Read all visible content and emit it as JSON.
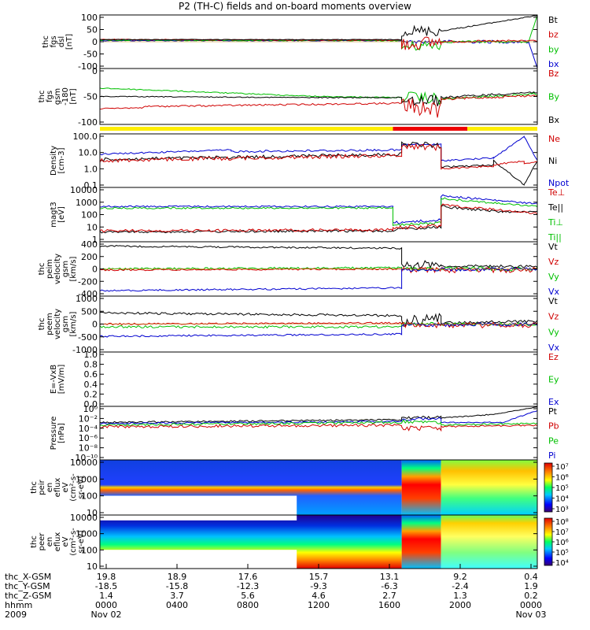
{
  "title": "P2 (TH-C) fields and on-board moments overview",
  "chart_data": {
    "type": "line",
    "panels": [
      {
        "id": "fgs-dsl",
        "ylabel": [
          "thc",
          "fgs",
          "dsl",
          "[nT]"
        ],
        "yticks": [
          "100",
          "50",
          "0",
          "-50",
          "-100"
        ],
        "legend": [
          {
            "name": "Bt",
            "color": "#000000"
          },
          {
            "name": "bz",
            "color": "#d00000"
          },
          {
            "name": "by",
            "color": "#00c000"
          },
          {
            "name": "bx",
            "color": "#0000d0"
          }
        ]
      },
      {
        "id": "fgs-gsm",
        "ylabel": [
          "thc",
          "fgs",
          "gsm",
          "-180",
          "[nT]"
        ],
        "yticks": [
          "0",
          "-50",
          "-100"
        ],
        "legend": [
          {
            "name": "Bz",
            "color": "#d00000"
          },
          {
            "name": "By",
            "color": "#00c000"
          },
          {
            "name": "Bx",
            "color": "#000000"
          }
        ]
      },
      {
        "id": "density",
        "ylabel": [
          "Density",
          "[cm-3]"
        ],
        "yticks": [
          "100.0",
          "10.0",
          "1.0",
          "0.1"
        ],
        "legend": [
          {
            "name": "Ne",
            "color": "#d00000"
          },
          {
            "name": "Ni",
            "color": "#000000"
          },
          {
            "name": "Npot",
            "color": "#0000d0"
          }
        ]
      },
      {
        "id": "temperature",
        "ylabel": [
          "magt3",
          "[eV]"
        ],
        "yticks": [
          "10000",
          "1000",
          "100",
          "10",
          "1"
        ],
        "legend": [
          {
            "name": "Te⊥",
            "color": "#d00000"
          },
          {
            "name": "Te||",
            "color": "#000000"
          },
          {
            "name": "Ti⊥",
            "color": "#00c000"
          },
          {
            "name": "Ti||",
            "color": "#00c000"
          }
        ]
      },
      {
        "id": "peim-velocity",
        "ylabel": [
          "thc",
          "peim",
          "velocity",
          "gsm",
          "[km/s]"
        ],
        "yticks": [
          "400",
          "200",
          "0",
          "-200",
          "-400"
        ],
        "legend": [
          {
            "name": "Vt",
            "color": "#000000"
          },
          {
            "name": "Vz",
            "color": "#d00000"
          },
          {
            "name": "Vy",
            "color": "#00c000"
          },
          {
            "name": "Vx",
            "color": "#0000d0"
          }
        ]
      },
      {
        "id": "peem-velocity",
        "ylabel": [
          "thc",
          "peem",
          "velocity",
          "gsm",
          "[km/s]"
        ],
        "yticks": [
          "1000",
          "500",
          "0",
          "-500",
          "-1000"
        ],
        "legend": [
          {
            "name": "Vt",
            "color": "#000000"
          },
          {
            "name": "Vz",
            "color": "#d00000"
          },
          {
            "name": "Vy",
            "color": "#00c000"
          },
          {
            "name": "Vx",
            "color": "#0000d0"
          }
        ]
      },
      {
        "id": "efield",
        "ylabel": [
          "E=-VxB",
          "[mV/m]"
        ],
        "yticks": [
          "1.0",
          "0.8",
          "0.6",
          "0.4",
          "0.2",
          "0.0"
        ],
        "legend": [
          {
            "name": "Ez",
            "color": "#d00000"
          },
          {
            "name": "Ey",
            "color": "#00c000"
          },
          {
            "name": "Ex",
            "color": "#0000d0"
          }
        ]
      },
      {
        "id": "pressure",
        "ylabel": [
          "Pressure",
          "[nPa]"
        ],
        "yticks": [
          "10⁰",
          "10⁻²",
          "10⁻⁴",
          "10⁻⁶",
          "10⁻⁸",
          "10⁻¹⁰"
        ],
        "legend": [
          {
            "name": "Pt",
            "color": "#000000"
          },
          {
            "name": "Pb",
            "color": "#d00000"
          },
          {
            "name": "Pe",
            "color": "#00c000"
          },
          {
            "name": "Pi",
            "color": "#0000d0"
          }
        ]
      },
      {
        "id": "peir-spec",
        "ylabel": [
          "thc",
          "peir",
          "en",
          "eflux",
          "eV",
          "(cm²-s-",
          "sr-eV)"
        ],
        "yticks": [
          "10000",
          "1000",
          "100",
          "10"
        ],
        "colorbar": [
          "10⁷",
          "10⁶",
          "10⁵",
          "10⁴",
          "10³"
        ]
      },
      {
        "id": "peer-spec",
        "ylabel": [
          "thc",
          "peer",
          "en",
          "eflux",
          "eV",
          "(cm²-s-",
          "sr-eV)"
        ],
        "yticks": [
          "10000",
          "1000",
          "100",
          "10"
        ],
        "colorbar": [
          "10⁸",
          "10⁷",
          "10⁶",
          "10⁵",
          "10⁴"
        ]
      }
    ],
    "x_axis": {
      "row_labels": [
        "thc_X-GSM",
        "thc_Y-GSM",
        "thc_Z-GSM",
        "hhmm",
        "2009"
      ],
      "ticks": [
        {
          "x": "19.8",
          "y": "-18.5",
          "z": "1.4",
          "hhmm": "0000",
          "date": "Nov 02"
        },
        {
          "x": "18.9",
          "y": "-15.8",
          "z": "3.7",
          "hhmm": "0400",
          "date": ""
        },
        {
          "x": "17.6",
          "y": "-12.3",
          "z": "5.6",
          "hhmm": "0800",
          "date": ""
        },
        {
          "x": "15.7",
          "y": "-9.3",
          "z": "4.6",
          "hhmm": "1200",
          "date": ""
        },
        {
          "x": "13.1",
          "y": "-6.3",
          "z": "2.7",
          "hhmm": "1600",
          "date": ""
        },
        {
          "x": "9.2",
          "y": "-2.4",
          "z": "1.3",
          "hhmm": "2000",
          "date": ""
        },
        {
          "x": "0.4",
          "y": "1.9",
          "z": "0.2",
          "hhmm": "0000",
          "date": "Nov 03"
        }
      ]
    }
  }
}
